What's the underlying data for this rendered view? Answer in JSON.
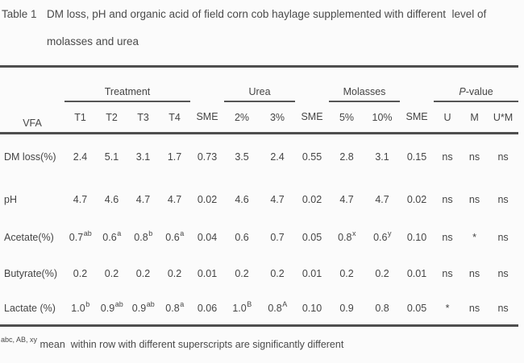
{
  "title": {
    "label": "Table 1",
    "line1": "DM loss, pH and organic acid of field corn cob haylage supplemented with different  level of",
    "line2": "molasses and urea"
  },
  "colors": {
    "text": "#454545",
    "rule": "#4e4e4e",
    "background": "#fbfbfb"
  },
  "table": {
    "corner_label": "VFA",
    "groups": [
      {
        "em": "",
        "label": "Treatment",
        "span": 4
      },
      {
        "em": "",
        "label": "",
        "span": 1
      },
      {
        "em": "",
        "label": "Urea",
        "span": 2
      },
      {
        "em": "",
        "label": "",
        "span": 1
      },
      {
        "em": "",
        "label": "Molasses",
        "span": 2
      },
      {
        "em": "",
        "label": "",
        "span": 1
      },
      {
        "em": "P",
        "label": "-value",
        "span": 3
      }
    ],
    "subheaders": [
      "T1",
      "T2",
      "T3",
      "T4",
      "SME",
      "2%",
      "3%",
      "SME",
      "5%",
      "10%",
      "SME",
      "U",
      "M",
      "U*M"
    ],
    "rows": [
      {
        "label": "DM loss(%)",
        "cells": [
          [
            "2.4",
            ""
          ],
          [
            "5.1",
            ""
          ],
          [
            "3.1",
            ""
          ],
          [
            "1.7",
            ""
          ],
          [
            "0.73",
            ""
          ],
          [
            "3.5",
            ""
          ],
          [
            "2.4",
            ""
          ],
          [
            "0.55",
            ""
          ],
          [
            "2.8",
            ""
          ],
          [
            "3.1",
            ""
          ],
          [
            "0.15",
            ""
          ],
          [
            "ns",
            ""
          ],
          [
            "ns",
            ""
          ],
          [
            "ns",
            ""
          ]
        ]
      },
      {
        "label": "pH",
        "cells": [
          [
            "4.7",
            ""
          ],
          [
            "4.6",
            ""
          ],
          [
            "4.7",
            ""
          ],
          [
            "4.7",
            ""
          ],
          [
            "0.02",
            ""
          ],
          [
            "4.6",
            ""
          ],
          [
            "4.7",
            ""
          ],
          [
            "0.02",
            ""
          ],
          [
            "4.7",
            ""
          ],
          [
            "4.7",
            ""
          ],
          [
            "0.02",
            ""
          ],
          [
            "ns",
            ""
          ],
          [
            "ns",
            ""
          ],
          [
            "ns",
            ""
          ]
        ]
      },
      {
        "label": "Acetate(%)",
        "cells": [
          [
            "0.7",
            "ab"
          ],
          [
            "0.6",
            "a"
          ],
          [
            "0.8",
            "b"
          ],
          [
            "0.6",
            "a"
          ],
          [
            "0.04",
            ""
          ],
          [
            "0.6",
            ""
          ],
          [
            "0.7",
            ""
          ],
          [
            "0.05",
            ""
          ],
          [
            "0.8",
            "x"
          ],
          [
            "0.6",
            "y"
          ],
          [
            "0.10",
            ""
          ],
          [
            "ns",
            ""
          ],
          [
            "*",
            ""
          ],
          [
            "ns",
            ""
          ]
        ]
      },
      {
        "label": "Butyrate(%)",
        "cells": [
          [
            "0.2",
            ""
          ],
          [
            "0.2",
            ""
          ],
          [
            "0.2",
            ""
          ],
          [
            "0.2",
            ""
          ],
          [
            "0.01",
            ""
          ],
          [
            "0.2",
            ""
          ],
          [
            "0.2",
            ""
          ],
          [
            "0.01",
            ""
          ],
          [
            "0.2",
            ""
          ],
          [
            "0.2",
            ""
          ],
          [
            "0.01",
            ""
          ],
          [
            "ns",
            ""
          ],
          [
            "ns",
            ""
          ],
          [
            "ns",
            ""
          ]
        ]
      },
      {
        "label": "Lactate (%)",
        "cells": [
          [
            "1.0",
            "b"
          ],
          [
            "0.9",
            "ab"
          ],
          [
            "0.9",
            "ab"
          ],
          [
            "0.8",
            "a"
          ],
          [
            "0.06",
            ""
          ],
          [
            "1.0",
            "B"
          ],
          [
            "0.8",
            "A"
          ],
          [
            "0.10",
            ""
          ],
          [
            "0.9",
            ""
          ],
          [
            "0.8",
            ""
          ],
          [
            "0.05",
            ""
          ],
          [
            "*",
            ""
          ],
          [
            "ns",
            ""
          ],
          [
            "ns",
            ""
          ]
        ]
      }
    ]
  },
  "footnote": {
    "sup": "abc, AB, xy",
    "text": "mean  within row with different superscripts are significantly different"
  }
}
